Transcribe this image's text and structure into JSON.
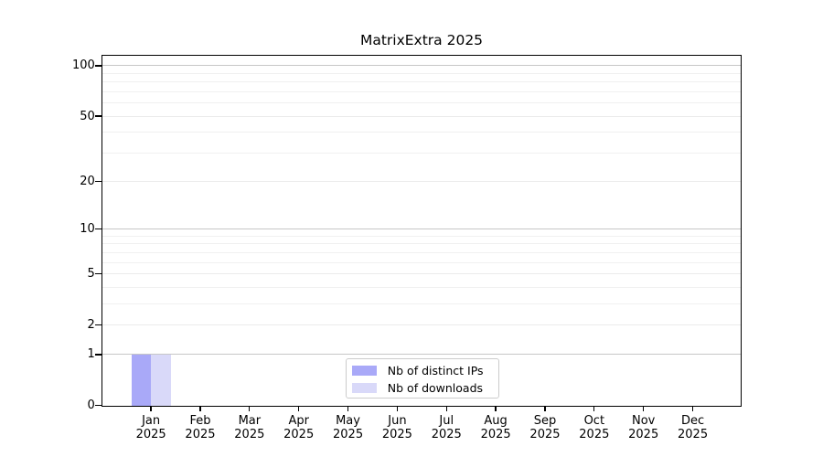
{
  "title": "MatrixExtra 2025",
  "chart_data": {
    "type": "bar",
    "title": "MatrixExtra 2025",
    "categories": [
      {
        "label": "Jan",
        "sublabel": "2025"
      },
      {
        "label": "Feb",
        "sublabel": "2025"
      },
      {
        "label": "Mar",
        "sublabel": "2025"
      },
      {
        "label": "Apr",
        "sublabel": "2025"
      },
      {
        "label": "May",
        "sublabel": "2025"
      },
      {
        "label": "Jun",
        "sublabel": "2025"
      },
      {
        "label": "Jul",
        "sublabel": "2025"
      },
      {
        "label": "Aug",
        "sublabel": "2025"
      },
      {
        "label": "Sep",
        "sublabel": "2025"
      },
      {
        "label": "Oct",
        "sublabel": "2025"
      },
      {
        "label": "Nov",
        "sublabel": "2025"
      },
      {
        "label": "Dec",
        "sublabel": "2025"
      }
    ],
    "series": [
      {
        "name": "Nb of distinct IPs",
        "color": "#a9a9f8",
        "values": [
          1,
          0,
          0,
          0,
          0,
          0,
          0,
          0,
          0,
          0,
          0,
          0
        ]
      },
      {
        "name": "Nb of downloads",
        "color": "#d9d9f9",
        "values": [
          1,
          0,
          0,
          0,
          0,
          0,
          0,
          0,
          0,
          0,
          0,
          0
        ]
      }
    ],
    "xlabel": "",
    "ylabel": "",
    "yscale": "log1p",
    "yticks": [
      0,
      1,
      2,
      5,
      10,
      20,
      50,
      100
    ],
    "yticks_minor": [
      3,
      4,
      6,
      7,
      8,
      9,
      30,
      40,
      60,
      70,
      80,
      90
    ],
    "ylim": [
      0,
      115
    ],
    "xlim": [
      -0.99,
      11.97
    ],
    "bar_width": 0.4,
    "grid": true,
    "legend_position": "lower center",
    "frame_color": "#000000",
    "grid_color_decade": "#c7c7c7",
    "grid_color_minor": "#f0f0f0"
  }
}
